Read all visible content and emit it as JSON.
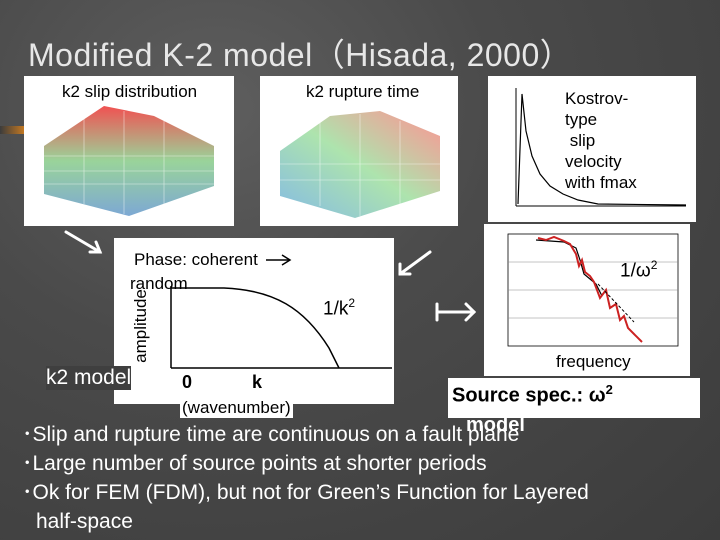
{
  "title": "Modified K-2 model（Hisada, 2000）",
  "panels": {
    "slip": {
      "label": "k2 slip distribution"
    },
    "rupture": {
      "label": "k2 rupture time"
    },
    "kostrov": {
      "label_lines": [
        "Kostrov-",
        "type",
        " slip",
        "velocity",
        "with fmax"
      ]
    }
  },
  "wavenumber_plot": {
    "phase_line1": "Phase: coherent",
    "phase_line2": "random",
    "ylabel": "amplitude",
    "slope_label": "1/k",
    "slope_exp": "2",
    "x_zero": "0",
    "x_k": "k",
    "x_label": "(wavenumber)",
    "model_label": "k2 model"
  },
  "spectrum_plot": {
    "slope_label": "1/ω",
    "slope_exp": "2",
    "x_label": "frequency",
    "caption_text": "Source spec.: ω",
    "caption_exp": "2",
    "caption_line2": "model"
  },
  "bullets": [
    "･Slip and rupture time are continuous on a fault plane",
    "･Large number of source points at shorter periods",
    "･Ok for FEM (FDM), but not for Green’s Function for Layered",
    "half-space"
  ],
  "colors": {
    "accent_orange": "#d9821e",
    "title": "#e7e7e7"
  }
}
